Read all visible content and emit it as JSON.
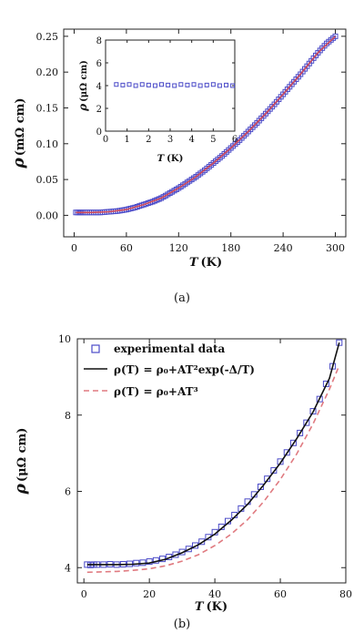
{
  "chart_data": [
    {
      "type": "scatter",
      "caption": "(a)",
      "xlabel_sym": "T",
      "xlabel_unit": "(K)",
      "ylabel_sym": "ρ",
      "ylabel_unit": "(mΩ cm)",
      "xlim": [
        -12,
        312
      ],
      "ylim": [
        -0.03,
        0.26
      ],
      "xticks": [
        "0",
        "60",
        "120",
        "180",
        "240",
        "300"
      ],
      "xtick_values": [
        0,
        60,
        120,
        180,
        240,
        300
      ],
      "yticks": [
        "0.00",
        "0.05",
        "0.10",
        "0.15",
        "0.20",
        "0.25"
      ],
      "ytick_values": [
        0,
        0.05,
        0.1,
        0.15,
        0.2,
        0.25
      ],
      "series": [
        {
          "marker": "open-square",
          "color": "#4a4ac8",
          "x": [
            2,
            10,
            20,
            30,
            40,
            50,
            60,
            70,
            80,
            90,
            100,
            110,
            120,
            130,
            140,
            150,
            160,
            170,
            180,
            190,
            200,
            210,
            220,
            230,
            240,
            250,
            260,
            270,
            280,
            290,
            300
          ],
          "y": [
            0.004,
            0.004,
            0.004,
            0.004,
            0.005,
            0.006,
            0.008,
            0.011,
            0.015,
            0.019,
            0.024,
            0.031,
            0.038,
            0.046,
            0.054,
            0.063,
            0.073,
            0.083,
            0.094,
            0.105,
            0.117,
            0.129,
            0.142,
            0.155,
            0.169,
            0.183,
            0.197,
            0.212,
            0.227,
            0.24,
            0.25
          ]
        },
        {
          "style": "line",
          "color": "#d04a5a",
          "x": [
            2,
            20,
            40,
            60,
            80,
            100,
            120,
            140,
            160,
            180,
            200,
            220,
            240,
            260,
            280,
            300
          ],
          "y": [
            0.004,
            0.004,
            0.005,
            0.008,
            0.015,
            0.024,
            0.038,
            0.054,
            0.073,
            0.094,
            0.117,
            0.142,
            0.169,
            0.197,
            0.227,
            0.25
          ]
        }
      ],
      "inset": {
        "xlabel_sym": "T",
        "xlabel_unit": "(K)",
        "ylabel_sym": "ρ",
        "ylabel_unit": "(μΩ cm)",
        "xlim": [
          0,
          6
        ],
        "ylim": [
          0,
          8
        ],
        "xticks": [
          "0",
          "1",
          "2",
          "3",
          "4",
          "5",
          "6"
        ],
        "xtick_values": [
          0,
          1,
          2,
          3,
          4,
          5,
          6
        ],
        "yticks": [
          "0",
          "2",
          "4",
          "6",
          "8"
        ],
        "ytick_values": [
          0,
          2,
          4,
          6,
          8
        ],
        "series": [
          {
            "marker": "open-square",
            "color": "#4a4ac8",
            "x": [
              0.5,
              0.8,
              1.1,
              1.4,
              1.7,
              2.0,
              2.3,
              2.6,
              2.9,
              3.2,
              3.5,
              3.8,
              4.1,
              4.4,
              4.7,
              5.0,
              5.3,
              5.6,
              5.9
            ],
            "y": [
              4.1,
              4.05,
              4.1,
              4.0,
              4.1,
              4.05,
              4.0,
              4.1,
              4.05,
              4.0,
              4.1,
              4.05,
              4.1,
              4.0,
              4.05,
              4.1,
              4.0,
              4.05,
              4.0
            ]
          }
        ]
      }
    },
    {
      "type": "scatter",
      "caption": "(b)",
      "xlabel_sym": "T",
      "xlabel_unit": "(K)",
      "ylabel_sym": "ρ",
      "ylabel_unit": "(μΩ cm)",
      "xlim": [
        -2,
        80
      ],
      "ylim": [
        3.6,
        10
      ],
      "xticks": [
        "0",
        "20",
        "40",
        "60",
        "80"
      ],
      "xtick_values": [
        0,
        20,
        40,
        60,
        80
      ],
      "yticks": [
        "4",
        "6",
        "8",
        "10"
      ],
      "ytick_values": [
        4,
        6,
        8,
        10
      ],
      "legend": {
        "placement": "top-left",
        "entries": [
          {
            "kind": "marker",
            "color": "#4a4ac8",
            "label": "experimental data"
          },
          {
            "kind": "solid",
            "color": "#111111",
            "label": "ρ(T) = ρ₀+AT²exp(-Δ/T)"
          },
          {
            "kind": "dashed",
            "color": "#e07a80",
            "label": "ρ(T) = ρ₀+AT³"
          }
        ]
      },
      "series": [
        {
          "name": "experimental data",
          "marker": "open-square",
          "color": "#4a4ac8",
          "x": [
            1,
            2,
            3,
            4,
            6,
            8,
            10,
            12,
            14,
            16,
            18,
            20,
            22,
            24,
            26,
            28,
            30,
            32,
            34,
            36,
            38,
            40,
            42,
            44,
            46,
            48,
            50,
            52,
            54,
            56,
            58,
            60,
            62,
            64,
            66,
            68,
            70,
            72,
            74,
            76,
            78
          ],
          "y": [
            4.08,
            4.07,
            4.08,
            4.08,
            4.08,
            4.09,
            4.08,
            4.09,
            4.1,
            4.12,
            4.13,
            4.16,
            4.19,
            4.23,
            4.28,
            4.34,
            4.41,
            4.49,
            4.58,
            4.68,
            4.8,
            4.93,
            5.07,
            5.22,
            5.38,
            5.55,
            5.73,
            5.92,
            6.12,
            6.33,
            6.55,
            6.78,
            7.02,
            7.27,
            7.53,
            7.8,
            8.1,
            8.42,
            8.82,
            9.28,
            9.9
          ]
        },
        {
          "name": "ρ(T) = ρ₀+AT²exp(-Δ/T)",
          "style": "solid",
          "color": "#111111",
          "x": [
            1,
            5,
            10,
            15,
            20,
            25,
            30,
            35,
            40,
            45,
            50,
            55,
            60,
            65,
            70,
            75,
            78
          ],
          "y": [
            4.08,
            4.08,
            4.08,
            4.09,
            4.12,
            4.22,
            4.39,
            4.6,
            4.88,
            5.24,
            5.66,
            6.18,
            6.74,
            7.38,
            8.08,
            8.96,
            9.9
          ]
        },
        {
          "name": "ρ(T) = ρ₀+AT³",
          "style": "dashed",
          "color": "#e07a80",
          "x": [
            1,
            5,
            10,
            15,
            20,
            25,
            30,
            35,
            40,
            45,
            50,
            55,
            60,
            65,
            70,
            75,
            78
          ],
          "y": [
            3.88,
            3.89,
            3.9,
            3.93,
            3.97,
            4.05,
            4.17,
            4.34,
            4.58,
            4.88,
            5.26,
            5.74,
            6.31,
            6.98,
            7.77,
            8.68,
            9.3
          ]
        }
      ]
    }
  ]
}
